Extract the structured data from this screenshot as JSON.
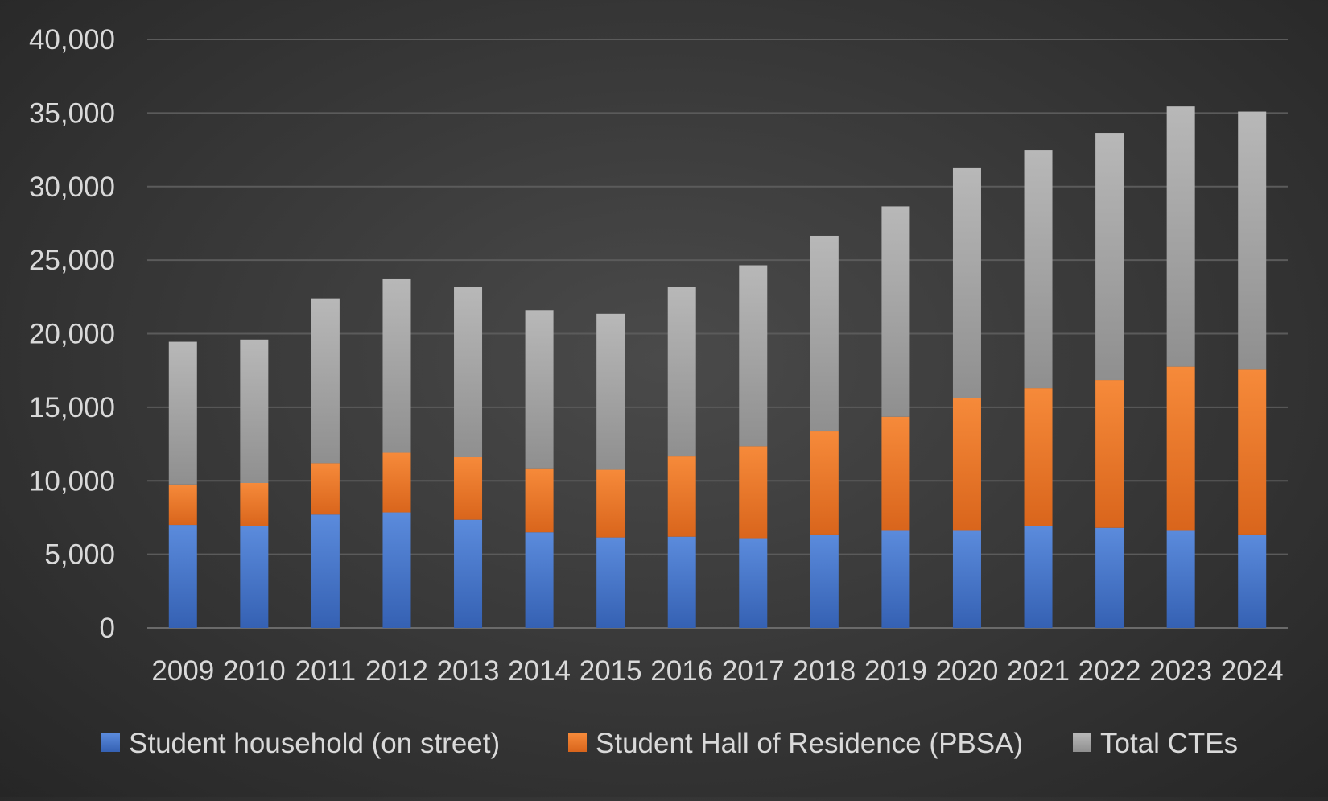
{
  "chart_data": {
    "type": "bar",
    "stacked": true,
    "title": "",
    "xlabel": "",
    "ylabel": "",
    "ylim": [
      0,
      40000
    ],
    "yticks": [
      "0",
      "5,000",
      "10,000",
      "15,000",
      "20,000",
      "25,000",
      "30,000",
      "35,000",
      "40,000"
    ],
    "grid": true,
    "legend_position": "bottom",
    "categories": [
      "2009",
      "2010",
      "2011",
      "2012",
      "2013",
      "2014",
      "2015",
      "2016",
      "2017",
      "2018",
      "2019",
      "2020",
      "2021",
      "2022",
      "2023",
      "2024"
    ],
    "series": [
      {
        "name": "Student household (on street)",
        "color": "#4472c4",
        "values": [
          7000,
          6900,
          7700,
          7850,
          7350,
          6500,
          6150,
          6200,
          6100,
          6350,
          6650,
          6650,
          6900,
          6800,
          6650,
          6350
        ]
      },
      {
        "name": "Student Hall of Residence (PBSA)",
        "color": "#ed7d31",
        "values": [
          2750,
          2950,
          3500,
          4050,
          4250,
          4350,
          4600,
          5450,
          6250,
          7000,
          7700,
          9000,
          9400,
          10050,
          11100,
          11250
        ]
      },
      {
        "name": "Total CTEs",
        "color": "#a5a5a5",
        "values": [
          9700,
          9750,
          11200,
          11850,
          11550,
          10750,
          10600,
          11550,
          12300,
          13300,
          14300,
          15600,
          16200,
          16800,
          17700,
          17500
        ]
      }
    ]
  }
}
